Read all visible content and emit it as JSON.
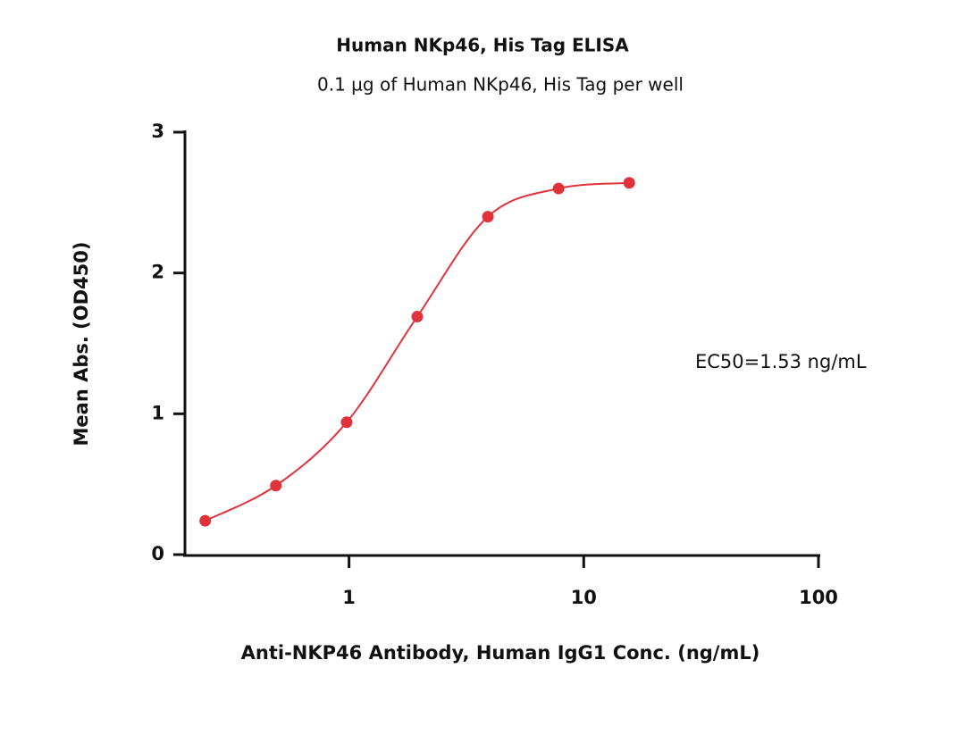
{
  "chart_data": {
    "type": "line",
    "log_x": true,
    "title": "Human NKp46, His Tag ELISA",
    "subtitle": "0.1 µg of Human NKp46, His Tag per well",
    "x_label": "Anti-NKP46 Antibody, Human IgG1 Conc. (ng/mL)",
    "y_label": "Mean Abs. (OD450)",
    "annotation": "EC50=1.53 ng/mL",
    "x": [
      0.244,
      0.488,
      0.977,
      1.953,
      3.906,
      7.813,
      15.625
    ],
    "series": [
      {
        "color": "#e0323a",
        "values": [
          0.24,
          0.49,
          0.94,
          1.69,
          2.4,
          2.6,
          2.64
        ]
      }
    ],
    "xlim": [
      0.2,
      100
    ],
    "xticks": [
      1,
      10,
      100
    ],
    "ylim": [
      0,
      3
    ],
    "yticks": [
      0,
      1,
      2,
      3
    ]
  }
}
